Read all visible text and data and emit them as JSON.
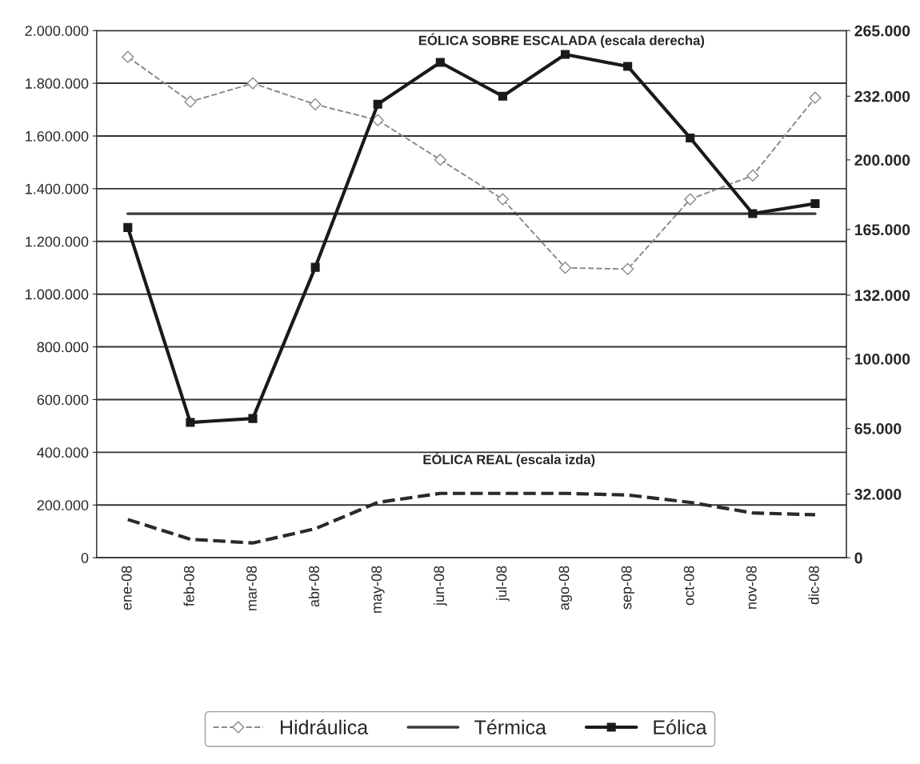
{
  "chart_data": {
    "type": "line",
    "categories": [
      "ene-08",
      "feb-08",
      "mar-08",
      "abr-08",
      "may-08",
      "jun-08",
      "jul-08",
      "ago-08",
      "sep-08",
      "oct-08",
      "nov-08",
      "dic-08"
    ],
    "series": [
      {
        "name": "Hidráulica",
        "color": "#8a8a8a",
        "line_style": "dashed",
        "marker": "diamond",
        "values": [
          1900000,
          1730000,
          1800000,
          1720000,
          1660000,
          1510000,
          1360000,
          1100000,
          1095000,
          1360000,
          1450000,
          1745000
        ]
      },
      {
        "name": "Térmica",
        "color": "#3a3a3a",
        "line_style": "solid",
        "marker": "none",
        "values": [
          1305000,
          1305000,
          1305000,
          1305000,
          1305000,
          1305000,
          1305000,
          1305000,
          1305000,
          1305000,
          1305000,
          1305000
        ]
      },
      {
        "name": "Eólica",
        "color": "#1a1a1a",
        "line_style": "solid",
        "marker": "square",
        "axis": "y2",
        "values": [
          166000,
          68000,
          70000,
          146000,
          228000,
          249000,
          232000,
          253000,
          247000,
          211000,
          173000,
          178000
        ]
      },
      {
        "color": "#2a2a2a",
        "line_style": "dashed",
        "marker": "none",
        "values": [
          145000,
          70000,
          56000,
          110000,
          210000,
          244000,
          244000,
          244000,
          238000,
          210000,
          170000,
          163000
        ]
      }
    ],
    "ylim": [
      0,
      2000000
    ],
    "yticks": [
      {
        "value": 0,
        "label": "0"
      },
      {
        "value": 200000,
        "label": "200.000"
      },
      {
        "value": 400000,
        "label": "400.000"
      },
      {
        "value": 600000,
        "label": "600.000"
      },
      {
        "value": 800000,
        "label": "800.000"
      },
      {
        "value": 1000000,
        "label": "1.000.000"
      },
      {
        "value": 1200000,
        "label": "1.200.000"
      },
      {
        "value": 1400000,
        "label": "1.400.000"
      },
      {
        "value": 1600000,
        "label": "1.600.000"
      },
      {
        "value": 1800000,
        "label": "1.800.000"
      },
      {
        "value": 2000000,
        "label": "2.000.000"
      }
    ],
    "y2lim": [
      0,
      265000
    ],
    "y2ticks": [
      0,
      {
        "value": 32000,
        "label": "32.000"
      },
      {
        "value": 65000,
        "label": "65.000"
      },
      {
        "value": 100000,
        "label": "100.000"
      },
      {
        "value": 132000,
        "label": "132.000"
      },
      {
        "value": 165000,
        "label": "165.000"
      },
      {
        "value": 200000,
        "label": "200.000"
      },
      {
        "value": 232000,
        "label": "232.000"
      },
      {
        "value": 265000,
        "label": "265.000"
      }
    ],
    "annotations": [
      "EÓLICA SOBRE ESCALADA (escala derecha)",
      "EÓLICA REAL (escala izda)"
    ],
    "grid": true,
    "legend": "bottom"
  }
}
